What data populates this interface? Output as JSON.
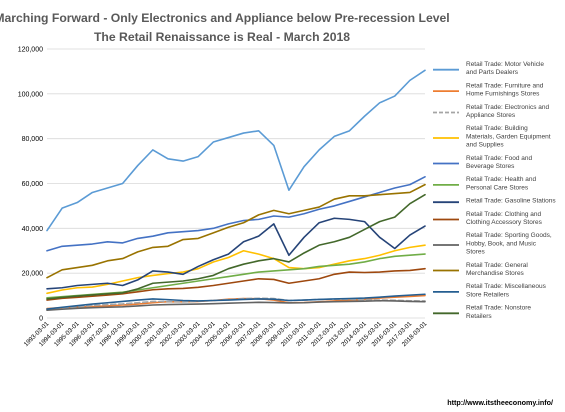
{
  "chart_data": {
    "type": "line",
    "title": "Marching Forward - Only Electronics and Appliance below Pre-recession Level",
    "subtitle": "The Retail Renaissance is Real - March 2018",
    "source": "http://www.itstheeconomy.info/",
    "x": [
      "1993-03-01",
      "1994-03-01",
      "1995-03-01",
      "1996-03-01",
      "1997-03-01",
      "1998-03-01",
      "1999-03-01",
      "2000-03-01",
      "2001-03-01",
      "2002-03-01",
      "2003-03-01",
      "2004-03-01",
      "2005-03-01",
      "2006-03-01",
      "2007-03-01",
      "2008-03-01",
      "2009-03-01",
      "2010-03-01",
      "2011-03-01",
      "2012-03-01",
      "2013-03-01",
      "2014-03-01",
      "2015-03-01",
      "2016-03-01",
      "2017-03-01",
      "2018-03-01"
    ],
    "ylim": [
      0,
      120000
    ],
    "yticks": [
      "0",
      "20,000",
      "40,000",
      "60,000",
      "80,000",
      "100,000",
      "120,000"
    ],
    "grid": true,
    "legend_position": "right",
    "series": [
      {
        "name": "Retail Trade: Motor Vehicle and Parts Dealers",
        "legend_lines": [
          "Retail Trade: Motor Vehicle",
          "and Parts Dealers"
        ],
        "color": "#5B9BD5",
        "dash": false,
        "values": [
          39000,
          49000,
          51500,
          56000,
          58000,
          60000,
          68000,
          75000,
          71000,
          70000,
          72000,
          78500,
          80500,
          82500,
          83500,
          77000,
          57000,
          67500,
          75000,
          81000,
          83500,
          90000,
          96000,
          99000,
          106000,
          110500
        ]
      },
      {
        "name": "Retail Trade: Furniture and Home Furnishings Stores",
        "legend_lines": [
          "Retail Trade: Furniture and",
          "Home Furnishings Stores"
        ],
        "color": "#ED7D31",
        "dash": false,
        "values": [
          4200,
          4600,
          4900,
          5100,
          5400,
          5800,
          6200,
          6800,
          7300,
          7200,
          7400,
          7800,
          8400,
          8700,
          8600,
          8000,
          6800,
          6900,
          7200,
          7600,
          8000,
          8300,
          8900,
          9300,
          9600,
          10000
        ]
      },
      {
        "name": "Retail Trade: Electronics and Appliance Stores",
        "legend_lines": [
          "Retail Trade: Electronics and",
          "Appliance Stores"
        ],
        "color": "#A5A5A5",
        "dash": true,
        "values": [
          3800,
          4400,
          5000,
          5600,
          6000,
          6300,
          6800,
          7400,
          7300,
          7200,
          7500,
          7800,
          8200,
          8600,
          8800,
          8700,
          7800,
          8000,
          8300,
          8400,
          8400,
          8100,
          8000,
          7900,
          7700,
          7600
        ]
      },
      {
        "name": "Retail Trade: Building Materials, Garden Equipment and Supplies",
        "legend_lines": [
          "Retail Trade: Building",
          "Materials, Garden Equipment",
          "and Supplies"
        ],
        "color": "#FFC000",
        "dash": false,
        "values": [
          11000,
          12500,
          13500,
          13800,
          15000,
          16500,
          18000,
          19000,
          19800,
          20500,
          22000,
          25000,
          27000,
          30000,
          28500,
          26500,
          22500,
          22000,
          22500,
          24000,
          25500,
          26500,
          28000,
          30000,
          31500,
          32500
        ]
      },
      {
        "name": "Retail Trade: Food and Beverage Stores",
        "legend_lines": [
          "Retail Trade: Food and",
          "Beverage Stores"
        ],
        "color": "#4472C4",
        "dash": false,
        "values": [
          30000,
          32000,
          32500,
          33000,
          34000,
          33500,
          35500,
          36500,
          38000,
          38500,
          39000,
          40000,
          42000,
          43500,
          44000,
          45500,
          45000,
          46500,
          48500,
          50000,
          52000,
          54000,
          56000,
          58000,
          59500,
          63000
        ]
      },
      {
        "name": "Retail Trade: Health and Personal Care Stores",
        "legend_lines": [
          "Retail Trade: Health and",
          "Personal Care Stores"
        ],
        "color": "#70AD47",
        "dash": false,
        "values": [
          9000,
          9500,
          10000,
          10500,
          11000,
          11500,
          12500,
          13500,
          14500,
          15500,
          16500,
          17500,
          18500,
          19500,
          20500,
          21000,
          21500,
          22000,
          23000,
          23500,
          24000,
          25000,
          26500,
          27500,
          28000,
          28500
        ]
      },
      {
        "name": "Retail Trade: Gasoline Stations",
        "legend_lines": [
          "Retail Trade: Gasoline Stations"
        ],
        "color": "#264478",
        "dash": false,
        "values": [
          13000,
          13500,
          14500,
          15000,
          15500,
          14500,
          17000,
          21000,
          20500,
          19500,
          23000,
          26000,
          28500,
          34000,
          36500,
          42000,
          28000,
          36000,
          42500,
          44500,
          44000,
          43000,
          36000,
          31000,
          37000,
          41000
        ]
      },
      {
        "name": "Retail Trade: Clothing and Clothing Accessory Stores",
        "legend_lines": [
          "Retail Trade: Clothing and",
          "Clothing Accessory Stores"
        ],
        "color": "#9E480E",
        "dash": false,
        "values": [
          8000,
          8800,
          9200,
          9700,
          10200,
          10800,
          11700,
          12600,
          13000,
          13200,
          13700,
          14500,
          15500,
          16500,
          17500,
          17200,
          15500,
          16500,
          17500,
          19500,
          20500,
          20300,
          20500,
          21000,
          21200,
          22000
        ]
      },
      {
        "name": "Retail Trade: Sporting Goods, Hobby, Book, and Music Stores",
        "legend_lines": [
          "Retail Trade: Sporting Goods,",
          "Hobby, Book, and Music",
          "Stores"
        ],
        "color": "#636363",
        "dash": false,
        "values": [
          3500,
          3900,
          4300,
          4600,
          4800,
          5000,
          5400,
          5800,
          6000,
          6100,
          6200,
          6400,
          6600,
          6800,
          7000,
          6900,
          6700,
          6800,
          7100,
          7300,
          7400,
          7500,
          7700,
          7600,
          7400,
          7300
        ]
      },
      {
        "name": "Retail Trade: General Merchandise Stores",
        "legend_lines": [
          "Retail Trade: General",
          "Merchandise Stores"
        ],
        "color": "#997300",
        "dash": false,
        "values": [
          18000,
          21500,
          22500,
          23500,
          25500,
          26500,
          29500,
          31500,
          32000,
          35000,
          35500,
          38000,
          40500,
          42500,
          46000,
          48000,
          46500,
          48000,
          49500,
          53000,
          54500,
          54500,
          55000,
          55500,
          56000,
          59500
        ]
      },
      {
        "name": "Retail Trade: Miscellaneous Store Retailers",
        "legend_lines": [
          "Retail Trade: Miscellaneous",
          "Store Retailers"
        ],
        "color": "#255E91",
        "dash": false,
        "values": [
          4000,
          4800,
          5500,
          6200,
          6800,
          7400,
          8000,
          8500,
          8200,
          7800,
          7600,
          7800,
          8000,
          8300,
          8500,
          8400,
          7800,
          8000,
          8300,
          8500,
          8700,
          8900,
          9300,
          9800,
          10200,
          10600
        ]
      },
      {
        "name": "Retail Trade: Nonstore Retailers",
        "legend_lines": [
          "Retail Trade: Nonstore",
          "Retailers"
        ],
        "color": "#43682B",
        "dash": false,
        "values": [
          8500,
          9200,
          9800,
          10300,
          10800,
          11200,
          13000,
          15500,
          16000,
          16500,
          17500,
          19000,
          22000,
          24000,
          25500,
          26500,
          25000,
          29000,
          32500,
          34000,
          36000,
          39500,
          43000,
          45000,
          51000,
          55000
        ]
      }
    ]
  }
}
